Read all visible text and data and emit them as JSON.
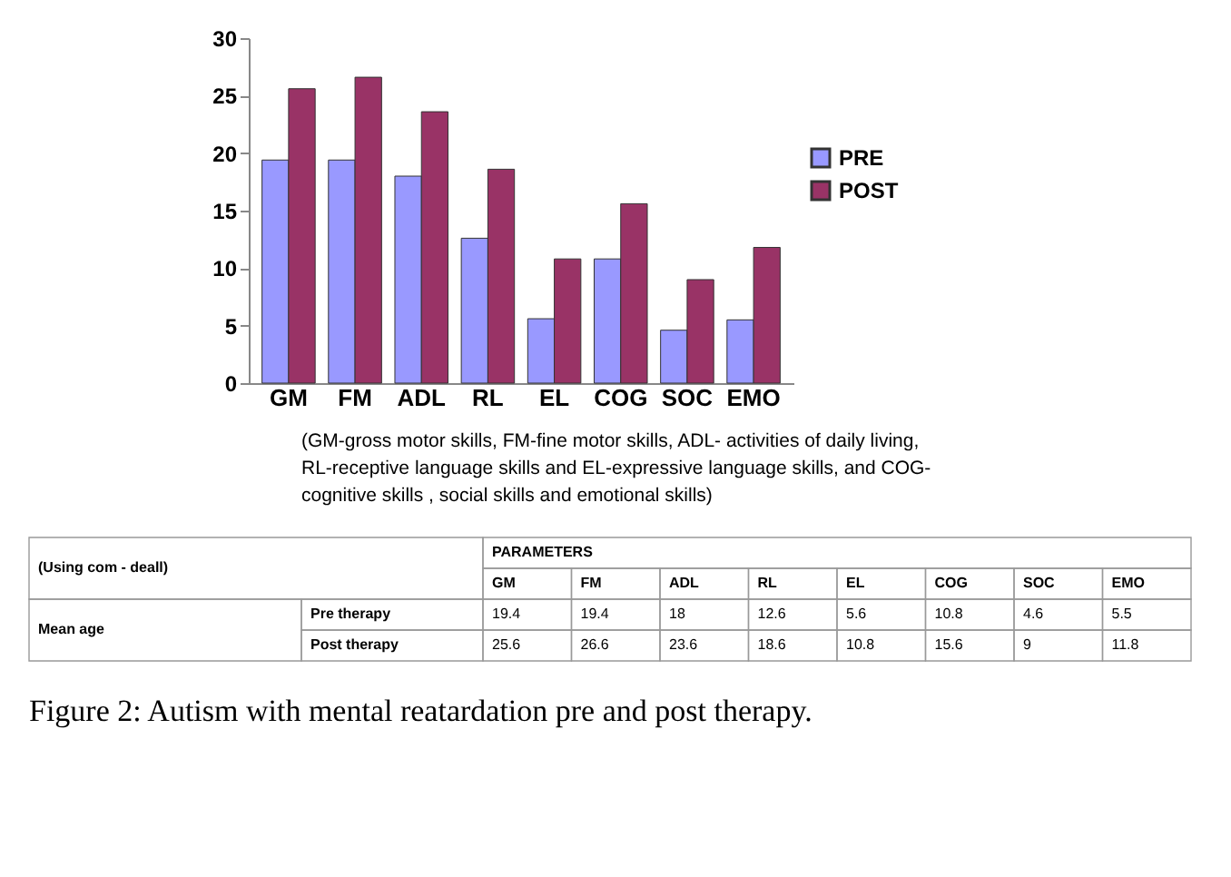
{
  "chart_data": [
    {
      "type": "bar",
      "title": "Figure 2: Autism with mental reatardation pre and post therapy.",
      "categories": [
        "GM",
        "FM",
        "ADL",
        "RL",
        "EL",
        "COG",
        "SOC",
        "EMO"
      ],
      "series": [
        {
          "name": "PRE",
          "color": "#9999ff",
          "values": [
            19.4,
            19.4,
            18,
            12.6,
            5.6,
            10.8,
            4.6,
            5.5
          ]
        },
        {
          "name": "POST",
          "color": "#993366",
          "values": [
            25.6,
            26.6,
            23.6,
            18.6,
            10.8,
            15.6,
            9,
            11.8
          ]
        }
      ],
      "ylim": [
        0,
        30
      ],
      "yticks": [
        0,
        5,
        10,
        15,
        20,
        25,
        30
      ],
      "legend": "right",
      "annotations": [
        "(GM-gross motor skills, FM-fine motor skills, ADL- activities of daily living, RL-receptive  language skills and EL-expressive language skills, and COG-cognitive skills , social skills and emotional skills)"
      ]
    },
    {
      "type": "heatmap",
      "xlabel": "PARAMETERS",
      "categories": [
        "GM",
        "FM",
        "ADL",
        "RL",
        "EL",
        "COG",
        "SOC",
        "EMO"
      ],
      "y_categories": [
        "Pre therapy",
        "Post therapy"
      ],
      "cells": [
        [
          19.4,
          19.4,
          18,
          12.6,
          5.6,
          10.8,
          4.6,
          5.5
        ],
        [
          25.6,
          26.6,
          23.6,
          18.6,
          10.8,
          15.6,
          9,
          11.8
        ]
      ],
      "data_labels": true,
      "annotations": [
        "(Using com - deall)",
        "Mean age"
      ]
    }
  ]
}
